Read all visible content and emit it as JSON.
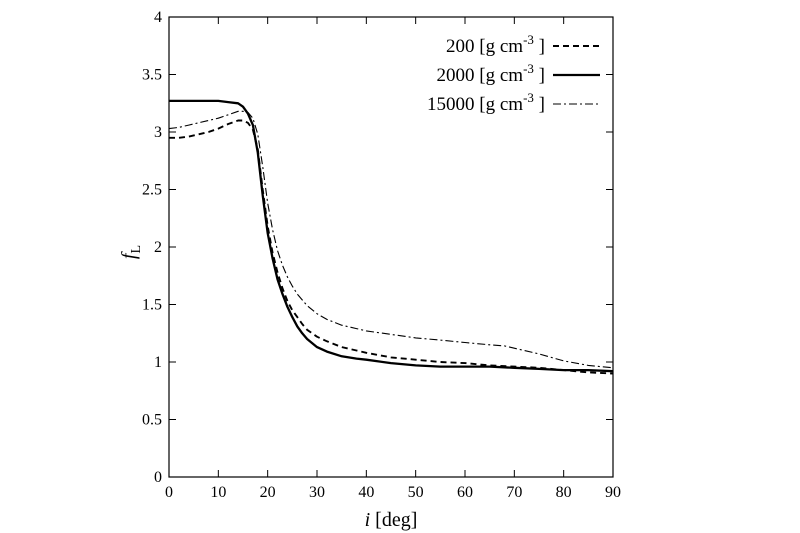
{
  "chart_data": {
    "type": "line",
    "xlabel": {
      "italic": "i",
      "rest": " [deg]"
    },
    "ylabel": {
      "main": "f",
      "sub": "L"
    },
    "xlim": [
      0,
      90
    ],
    "ylim": [
      0,
      4
    ],
    "xticks": [
      0,
      10,
      20,
      30,
      40,
      50,
      60,
      70,
      80,
      90
    ],
    "yticks": [
      0,
      0.5,
      1,
      1.5,
      2,
      2.5,
      3,
      3.5,
      4
    ],
    "grid": false,
    "legend_position": "top-right",
    "series": [
      {
        "name": "200 [g cm",
        "name_sup": "-3",
        "name_end": "]",
        "style": "dashed",
        "x": [
          0,
          2,
          4,
          6,
          8,
          10,
          12,
          14,
          15,
          16,
          17,
          18,
          19,
          20,
          21,
          22,
          23,
          24,
          25,
          26,
          27,
          28,
          30,
          32,
          35,
          38,
          40,
          45,
          50,
          55,
          60,
          65,
          70,
          75,
          80,
          85,
          90
        ],
        "y": [
          2.95,
          2.95,
          2.96,
          2.98,
          3.0,
          3.03,
          3.07,
          3.1,
          3.1,
          3.08,
          3.02,
          2.85,
          2.5,
          2.18,
          1.95,
          1.78,
          1.64,
          1.53,
          1.45,
          1.39,
          1.33,
          1.28,
          1.22,
          1.18,
          1.13,
          1.1,
          1.08,
          1.04,
          1.02,
          1.0,
          0.99,
          0.97,
          0.96,
          0.95,
          0.93,
          0.91,
          0.9
        ]
      },
      {
        "name": "2000 [g cm",
        "name_sup": "-3",
        "name_end": "]",
        "style": "solid",
        "x": [
          0,
          2,
          4,
          6,
          8,
          10,
          12,
          14,
          15,
          16,
          17,
          18,
          19,
          20,
          21,
          22,
          23,
          24,
          25,
          26,
          27,
          28,
          30,
          32,
          35,
          38,
          40,
          45,
          50,
          55,
          60,
          65,
          70,
          75,
          80,
          85,
          90
        ],
        "y": [
          3.27,
          3.27,
          3.27,
          3.27,
          3.27,
          3.27,
          3.26,
          3.25,
          3.22,
          3.16,
          3.06,
          2.82,
          2.45,
          2.12,
          1.9,
          1.72,
          1.59,
          1.48,
          1.39,
          1.31,
          1.25,
          1.2,
          1.13,
          1.09,
          1.05,
          1.03,
          1.02,
          0.99,
          0.97,
          0.96,
          0.96,
          0.96,
          0.95,
          0.94,
          0.93,
          0.93,
          0.92
        ]
      },
      {
        "name": "15000 [g cm",
        "name_sup": "-3",
        "name_end": "]",
        "style": "dashdot",
        "x": [
          0,
          2,
          4,
          6,
          8,
          10,
          12,
          14,
          15,
          16,
          17,
          18,
          19,
          20,
          21,
          22,
          23,
          24,
          25,
          26,
          27,
          28,
          30,
          32,
          35,
          38,
          40,
          45,
          50,
          55,
          60,
          65,
          68,
          70,
          75,
          80,
          85,
          90
        ],
        "y": [
          3.03,
          3.04,
          3.06,
          3.08,
          3.1,
          3.12,
          3.15,
          3.18,
          3.18,
          3.17,
          3.12,
          2.98,
          2.7,
          2.38,
          2.15,
          1.97,
          1.84,
          1.74,
          1.66,
          1.59,
          1.54,
          1.49,
          1.42,
          1.37,
          1.32,
          1.29,
          1.27,
          1.24,
          1.21,
          1.19,
          1.17,
          1.15,
          1.14,
          1.12,
          1.07,
          1.01,
          0.97,
          0.95
        ]
      }
    ]
  }
}
